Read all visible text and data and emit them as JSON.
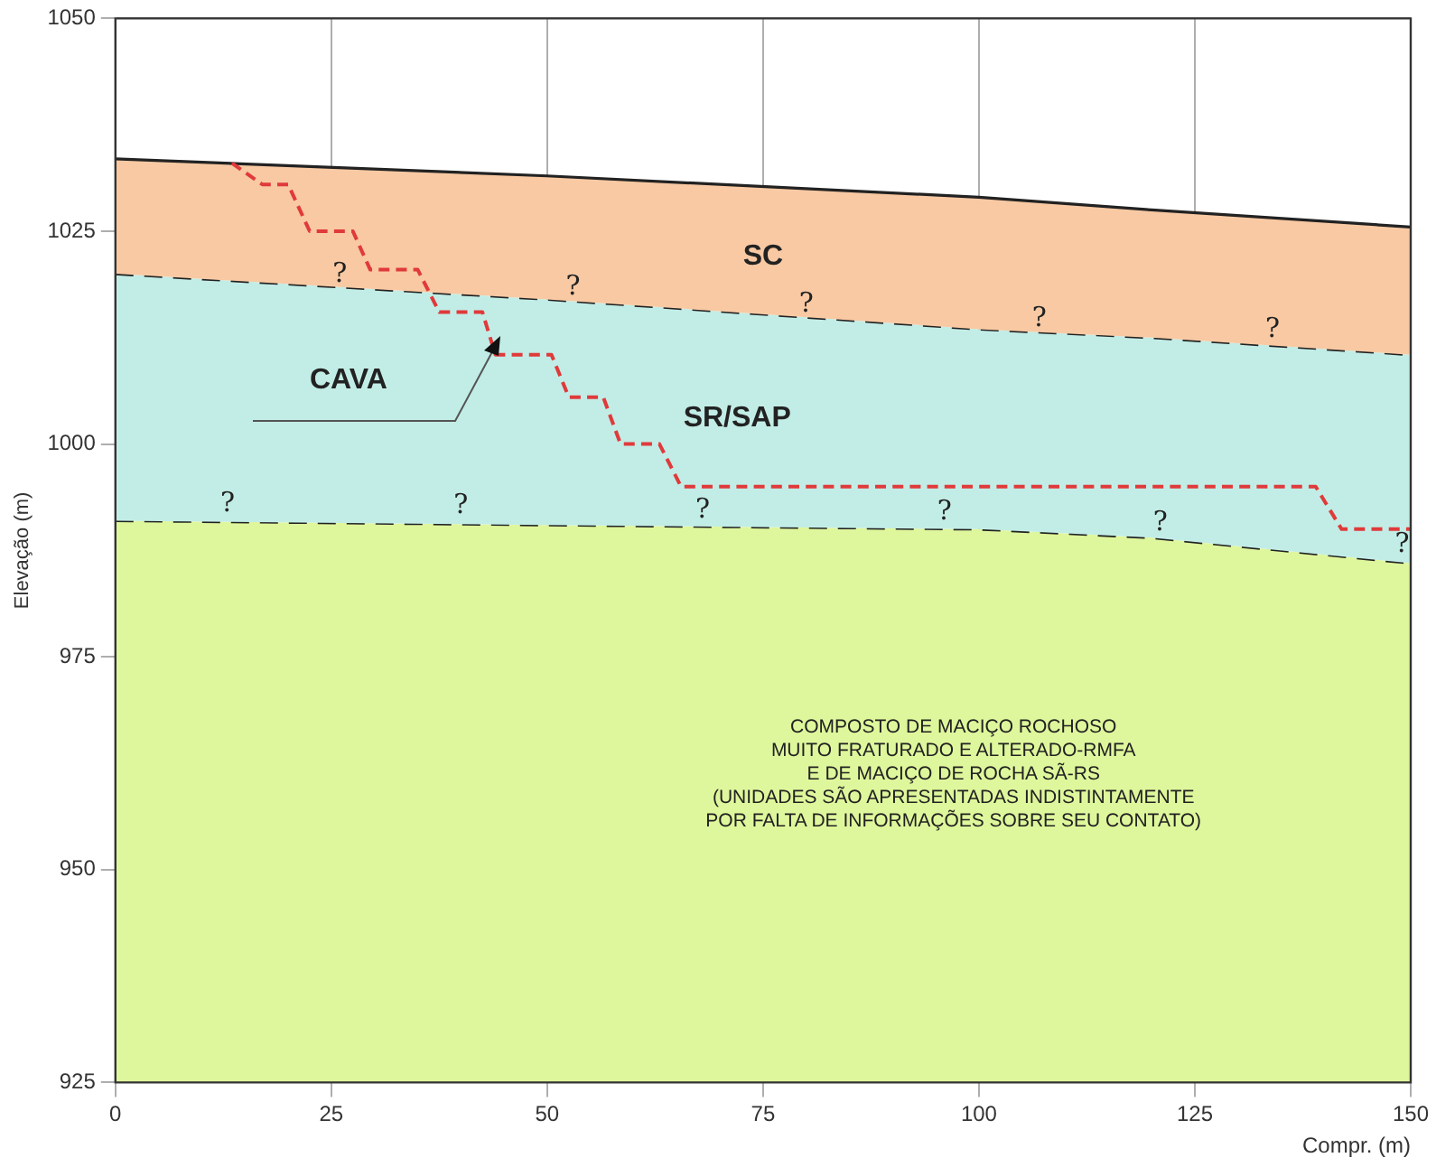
{
  "chart_data": {
    "type": "area",
    "xlabel": "Compr. (m)",
    "ylabel": "Elevação (m)",
    "xlim": [
      0,
      150
    ],
    "xticks": [
      0,
      25,
      50,
      75,
      100,
      125,
      150
    ],
    "ylim": [
      925,
      1050
    ],
    "yticks": [
      925,
      950,
      975,
      1000,
      1025,
      1050
    ],
    "grid": true,
    "legend": false,
    "marker": "none",
    "series": [
      {
        "color": "#f8c9a3",
        "line_style": "solid",
        "x": [
          0,
          50,
          100,
          120,
          150
        ],
        "values": [
          1033.5,
          1031.5,
          1029,
          1027.5,
          1025.5
        ]
      },
      {
        "color": "#c2ede6",
        "line_style": "dashed",
        "x": [
          0,
          50,
          100,
          120,
          150
        ],
        "values": [
          1020,
          1017,
          1013.5,
          1012.5,
          1010.5
        ]
      },
      {
        "color": "#dff79c",
        "line_style": "dashed",
        "x": [
          0,
          50,
          100,
          120,
          150
        ],
        "values": [
          991,
          990.5,
          990,
          989,
          986
        ]
      },
      {
        "type": "line",
        "color": "#e03a3a",
        "line_style": "dashed",
        "x": [
          13.5,
          17,
          20,
          22.5,
          27.5,
          29.5,
          35,
          37.5,
          42.5,
          44,
          50.5,
          52.5,
          56.5,
          58.5,
          63,
          65.5,
          139,
          142,
          150
        ],
        "values": [
          1033,
          1030.5,
          1030.5,
          1025,
          1025,
          1020.5,
          1020.5,
          1015.5,
          1015.5,
          1010.5,
          1010.5,
          1005.5,
          1005.5,
          1000,
          1000,
          995,
          995,
          990,
          990
        ]
      }
    ],
    "annotations": [
      "SC",
      "SR/SAP",
      "CAVA",
      "COMPOSTO DE MACIÇO ROCHOSO\nMUITO FRATURADO E ALTERADO-RMFA\nE DE MACIÇO DE ROCHA SÃ-RS\n(UNIDADES SÃO APRESENTADAS INDISTINTAMENTE\nPOR FALTA DE INFORMAÇÕES SOBRE SEU CONTATO)",
      {
        "text": "?",
        "x": 26,
        "y": 1018
      },
      {
        "text": "?",
        "x": 53,
        "y": 1016.5
      },
      {
        "text": "?",
        "x": 80,
        "y": 1014.5
      },
      {
        "text": "?",
        "x": 107,
        "y": 1012.8
      },
      {
        "text": "?",
        "x": 134,
        "y": 1011.5
      },
      {
        "text": "?",
        "x": 13,
        "y": 991
      },
      {
        "text": "?",
        "x": 40,
        "y": 990.8
      },
      {
        "text": "?",
        "x": 68,
        "y": 990.3
      },
      {
        "text": "?",
        "x": 96,
        "y": 990.1
      },
      {
        "text": "?",
        "x": 121,
        "y": 988.8
      },
      {
        "text": "?",
        "x": 149,
        "y": 986.2
      }
    ]
  }
}
